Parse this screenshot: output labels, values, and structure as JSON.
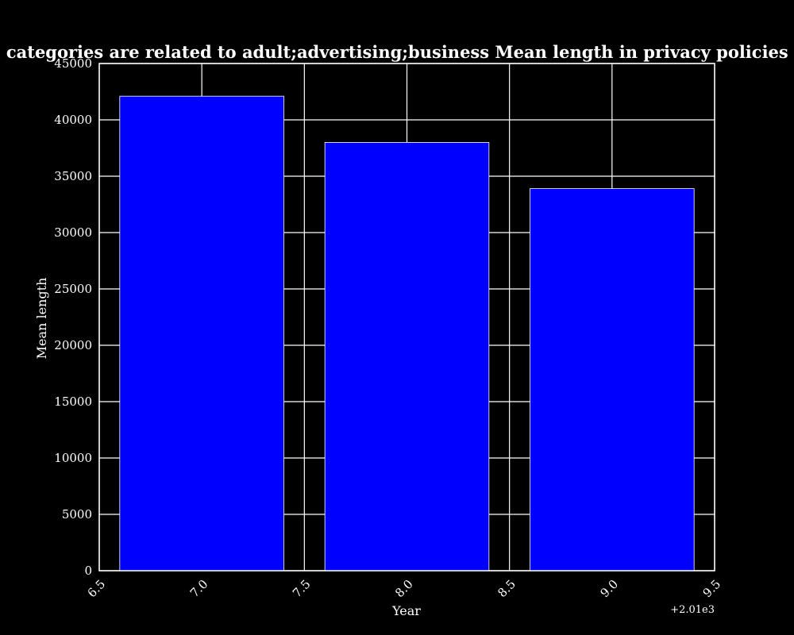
{
  "chart_data": {
    "type": "bar",
    "title": "when categories are related to adult;advertising;business Mean length in privacy policies by Year",
    "xlabel": "Year",
    "ylabel": "Mean length",
    "x_offset_label": "+2.01e3",
    "x": [
      2017,
      2018,
      2019
    ],
    "values": [
      42100,
      38000,
      33900
    ],
    "bar_width": 0.8,
    "xlim": [
      2016.5,
      2019.5
    ],
    "ylim": [
      0,
      45000
    ],
    "xticks": [
      2016.5,
      2017.0,
      2017.5,
      2018.0,
      2018.5,
      2019.0,
      2019.5
    ],
    "xtick_labels": [
      "6.5",
      "7.0",
      "7.5",
      "8.0",
      "8.5",
      "9.0",
      "9.5"
    ],
    "yticks": [
      0,
      5000,
      10000,
      15000,
      20000,
      25000,
      30000,
      35000,
      40000,
      45000
    ],
    "ytick_labels": [
      "0",
      "5000",
      "10000",
      "15000",
      "20000",
      "25000",
      "30000",
      "35000",
      "40000",
      "45000"
    ],
    "grid": true,
    "colors": {
      "background": "#000000",
      "bar": "#0000ff",
      "bar_edge": "#ffffff",
      "grid": "#ffffff",
      "text": "#ffffff"
    }
  }
}
